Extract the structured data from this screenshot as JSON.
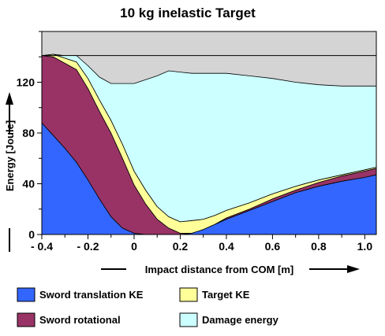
{
  "chart_data": {
    "type": "area",
    "stacked": true,
    "title": "10 kg inelastic Target",
    "xlabel": "Impact distance from COM  [m]",
    "ylabel": "Energy [Joule]",
    "xlim": [
      -0.4,
      1.05
    ],
    "ylim": [
      0,
      160
    ],
    "x_ticks": [
      "- 0.4",
      "- 0.2",
      "0",
      "0.2",
      "0.4",
      "0.6",
      "0.8",
      "1.0"
    ],
    "y_ticks": [
      "0",
      "40",
      "80",
      "120"
    ],
    "x": [
      -0.4,
      -0.35,
      -0.3,
      -0.25,
      -0.2,
      -0.15,
      -0.1,
      -0.05,
      0,
      0.05,
      0.1,
      0.15,
      0.2,
      0.25,
      0.3,
      0.35,
      0.4,
      0.5,
      0.6,
      0.7,
      0.8,
      0.9,
      1.0,
      1.05
    ],
    "series": [
      {
        "name": "Sword translation KE",
        "color": "#3366ff",
        "values": [
          88,
          78,
          68,
          57,
          43,
          28,
          14,
          5,
          1,
          0,
          0,
          0,
          0,
          1,
          4,
          8,
          12,
          19,
          26,
          33,
          38,
          42,
          45,
          47
        ]
      },
      {
        "name": "Sword rotational",
        "color": "#993366",
        "values": [
          53,
          62,
          67,
          73,
          72,
          69,
          66,
          55,
          38,
          24,
          12,
          5,
          1,
          0,
          0,
          0,
          1,
          1,
          2,
          2,
          3,
          4,
          5,
          5
        ]
      },
      {
        "name": "Target KE",
        "color": "#ffff99",
        "values": [
          0,
          2,
          4,
          6,
          8,
          9,
          10,
          11,
          11,
          11,
          10,
          9,
          9,
          10,
          8,
          7,
          6,
          5,
          4,
          3,
          2,
          1,
          1,
          1
        ]
      },
      {
        "name": "Damage energy",
        "color": "#ccffff",
        "values": [
          0,
          0,
          2,
          5,
          10,
          18,
          29,
          48,
          69,
          87,
          103,
          115,
          118,
          116,
          115,
          112,
          108,
          100,
          91,
          82,
          75,
          70,
          66,
          64
        ]
      }
    ],
    "reference_line": 141,
    "upper_band_color": "#d4d4d4",
    "legend_position": "bottom",
    "grid": false
  }
}
